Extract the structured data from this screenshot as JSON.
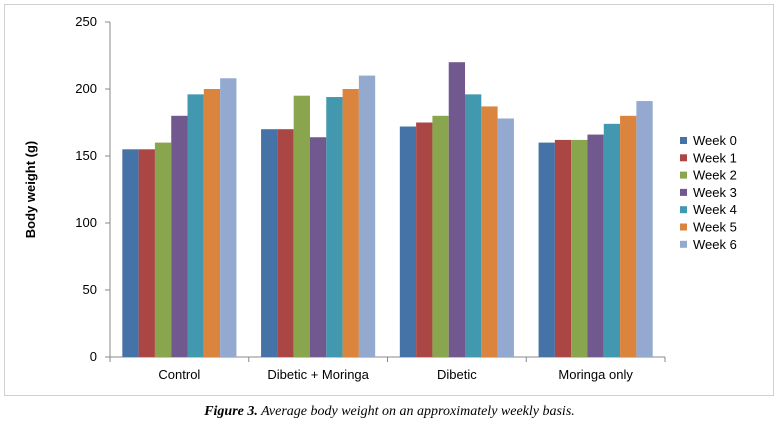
{
  "chart_data": {
    "type": "bar",
    "title": "",
    "xlabel": "",
    "ylabel": "Body weight (g)",
    "ylim": [
      0,
      250
    ],
    "yticks": [
      0,
      50,
      100,
      150,
      200,
      250
    ],
    "grid": false,
    "legend": "right",
    "categories": [
      "Control",
      "Dibetic + Moringa",
      "Dibetic",
      "Moringa only"
    ],
    "series": [
      {
        "name": "Week 0",
        "color": "#4572a7",
        "values": [
          155,
          170,
          172,
          160
        ]
      },
      {
        "name": "Week 1",
        "color": "#aa4643",
        "values": [
          155,
          170,
          175,
          162
        ]
      },
      {
        "name": "Week 2",
        "color": "#89a54e",
        "values": [
          160,
          195,
          180,
          162
        ]
      },
      {
        "name": "Week 3",
        "color": "#71588f",
        "values": [
          180,
          164,
          220,
          166
        ]
      },
      {
        "name": "Week 4",
        "color": "#4198af",
        "values": [
          196,
          194,
          196,
          174
        ]
      },
      {
        "name": "Week 5",
        "color": "#db843d",
        "values": [
          200,
          200,
          187,
          180
        ]
      },
      {
        "name": "Week 6",
        "color": "#93a9cf",
        "values": [
          208,
          210,
          178,
          191
        ]
      }
    ]
  },
  "caption": {
    "label": "Figure 3.",
    "text": " Average body weight on an approximately weekly basis."
  }
}
